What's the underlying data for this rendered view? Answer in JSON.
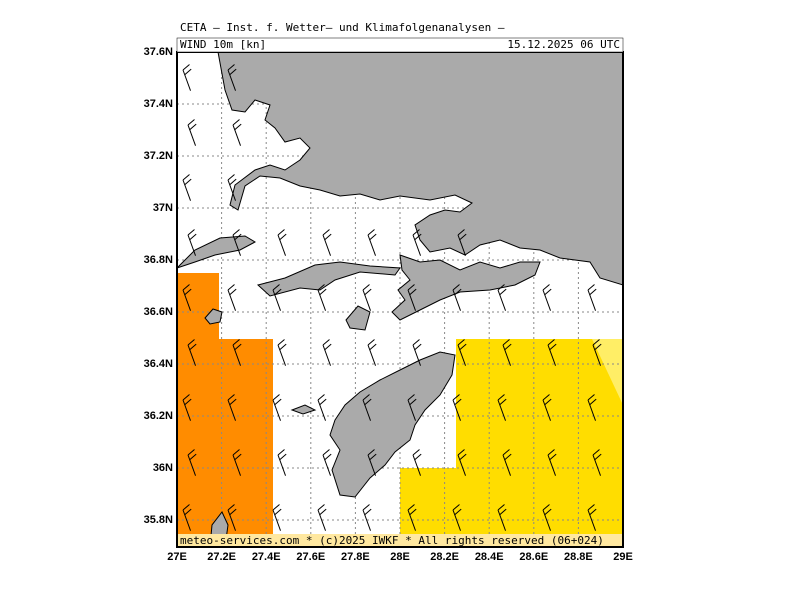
{
  "header": {
    "institute": "CETA — Inst. f. Wetter— und Klimafolgenanalysen —",
    "field": "WIND 10m [kn]",
    "time": "15.12.2025 06 UTC"
  },
  "map": {
    "lat_ticks": [
      "37.6N",
      "37.4N",
      "37.2N",
      "37N",
      "36.8N",
      "36.6N",
      "36.4N",
      "36.2N",
      "36N",
      "35.8N"
    ],
    "lon_ticks": [
      "27E",
      "27.2E",
      "27.4E",
      "27.6E",
      "27.8E",
      "28E",
      "28.2E",
      "28.4E",
      "28.6E",
      "28.8E",
      "29E"
    ]
  },
  "footer": {
    "credit": "meteo-services.com * (c)2025 IWKF * All rights reserved (06+024)"
  }
}
